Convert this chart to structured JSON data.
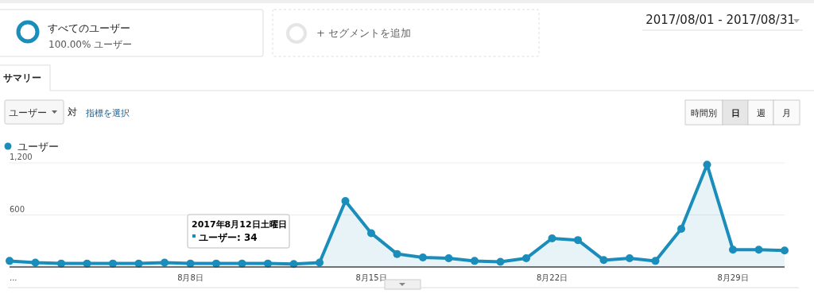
{
  "chart_data": {
    "type": "area",
    "x": [
      "2017-08-01",
      "2017-08-02",
      "2017-08-03",
      "2017-08-04",
      "2017-08-05",
      "2017-08-06",
      "2017-08-07",
      "2017-08-08",
      "2017-08-09",
      "2017-08-10",
      "2017-08-11",
      "2017-08-12",
      "2017-08-13",
      "2017-08-14",
      "2017-08-15",
      "2017-08-16",
      "2017-08-17",
      "2017-08-18",
      "2017-08-19",
      "2017-08-20",
      "2017-08-21",
      "2017-08-22",
      "2017-08-23",
      "2017-08-24",
      "2017-08-25",
      "2017-08-26",
      "2017-08-27",
      "2017-08-28",
      "2017-08-29",
      "2017-08-30",
      "2017-08-31"
    ],
    "series": [
      {
        "name": "ユーザー",
        "color": "#1a8dbb",
        "values": [
          70,
          50,
          40,
          40,
          40,
          40,
          50,
          40,
          40,
          40,
          40,
          34,
          50,
          760,
          390,
          150,
          110,
          100,
          70,
          60,
          100,
          330,
          310,
          80,
          100,
          70,
          440,
          1180,
          200,
          200,
          190
        ]
      }
    ],
    "xlim": [
      "2017-08-01",
      "2017-08-31"
    ],
    "xticks": [
      {
        "value": "2017-08-01",
        "label": "..."
      },
      {
        "value": "2017-08-08",
        "label": "8月8日"
      },
      {
        "value": "2017-08-15",
        "label": "8月15日"
      },
      {
        "value": "2017-08-22",
        "label": "8月22日"
      },
      {
        "value": "2017-08-29",
        "label": "8月29日"
      }
    ],
    "ylim": [
      0,
      1200
    ],
    "yticks": [
      600,
      {
        "value": 1200,
        "label": "1,200"
      }
    ],
    "grid": "y",
    "legend": "top left",
    "marker": "circle",
    "line_style": "solid",
    "annotations": [
      "すべてのユーザー",
      "100.00% ユーザー",
      "+ セグメントを追加",
      "2017/08/01 - 2017/08/31",
      "サマリー",
      "ユーザー",
      "対",
      "指標を選択",
      "時間別",
      "日",
      "週",
      "月",
      "2017年8月12日土曜日",
      "ユーザー: 34"
    ]
  }
}
